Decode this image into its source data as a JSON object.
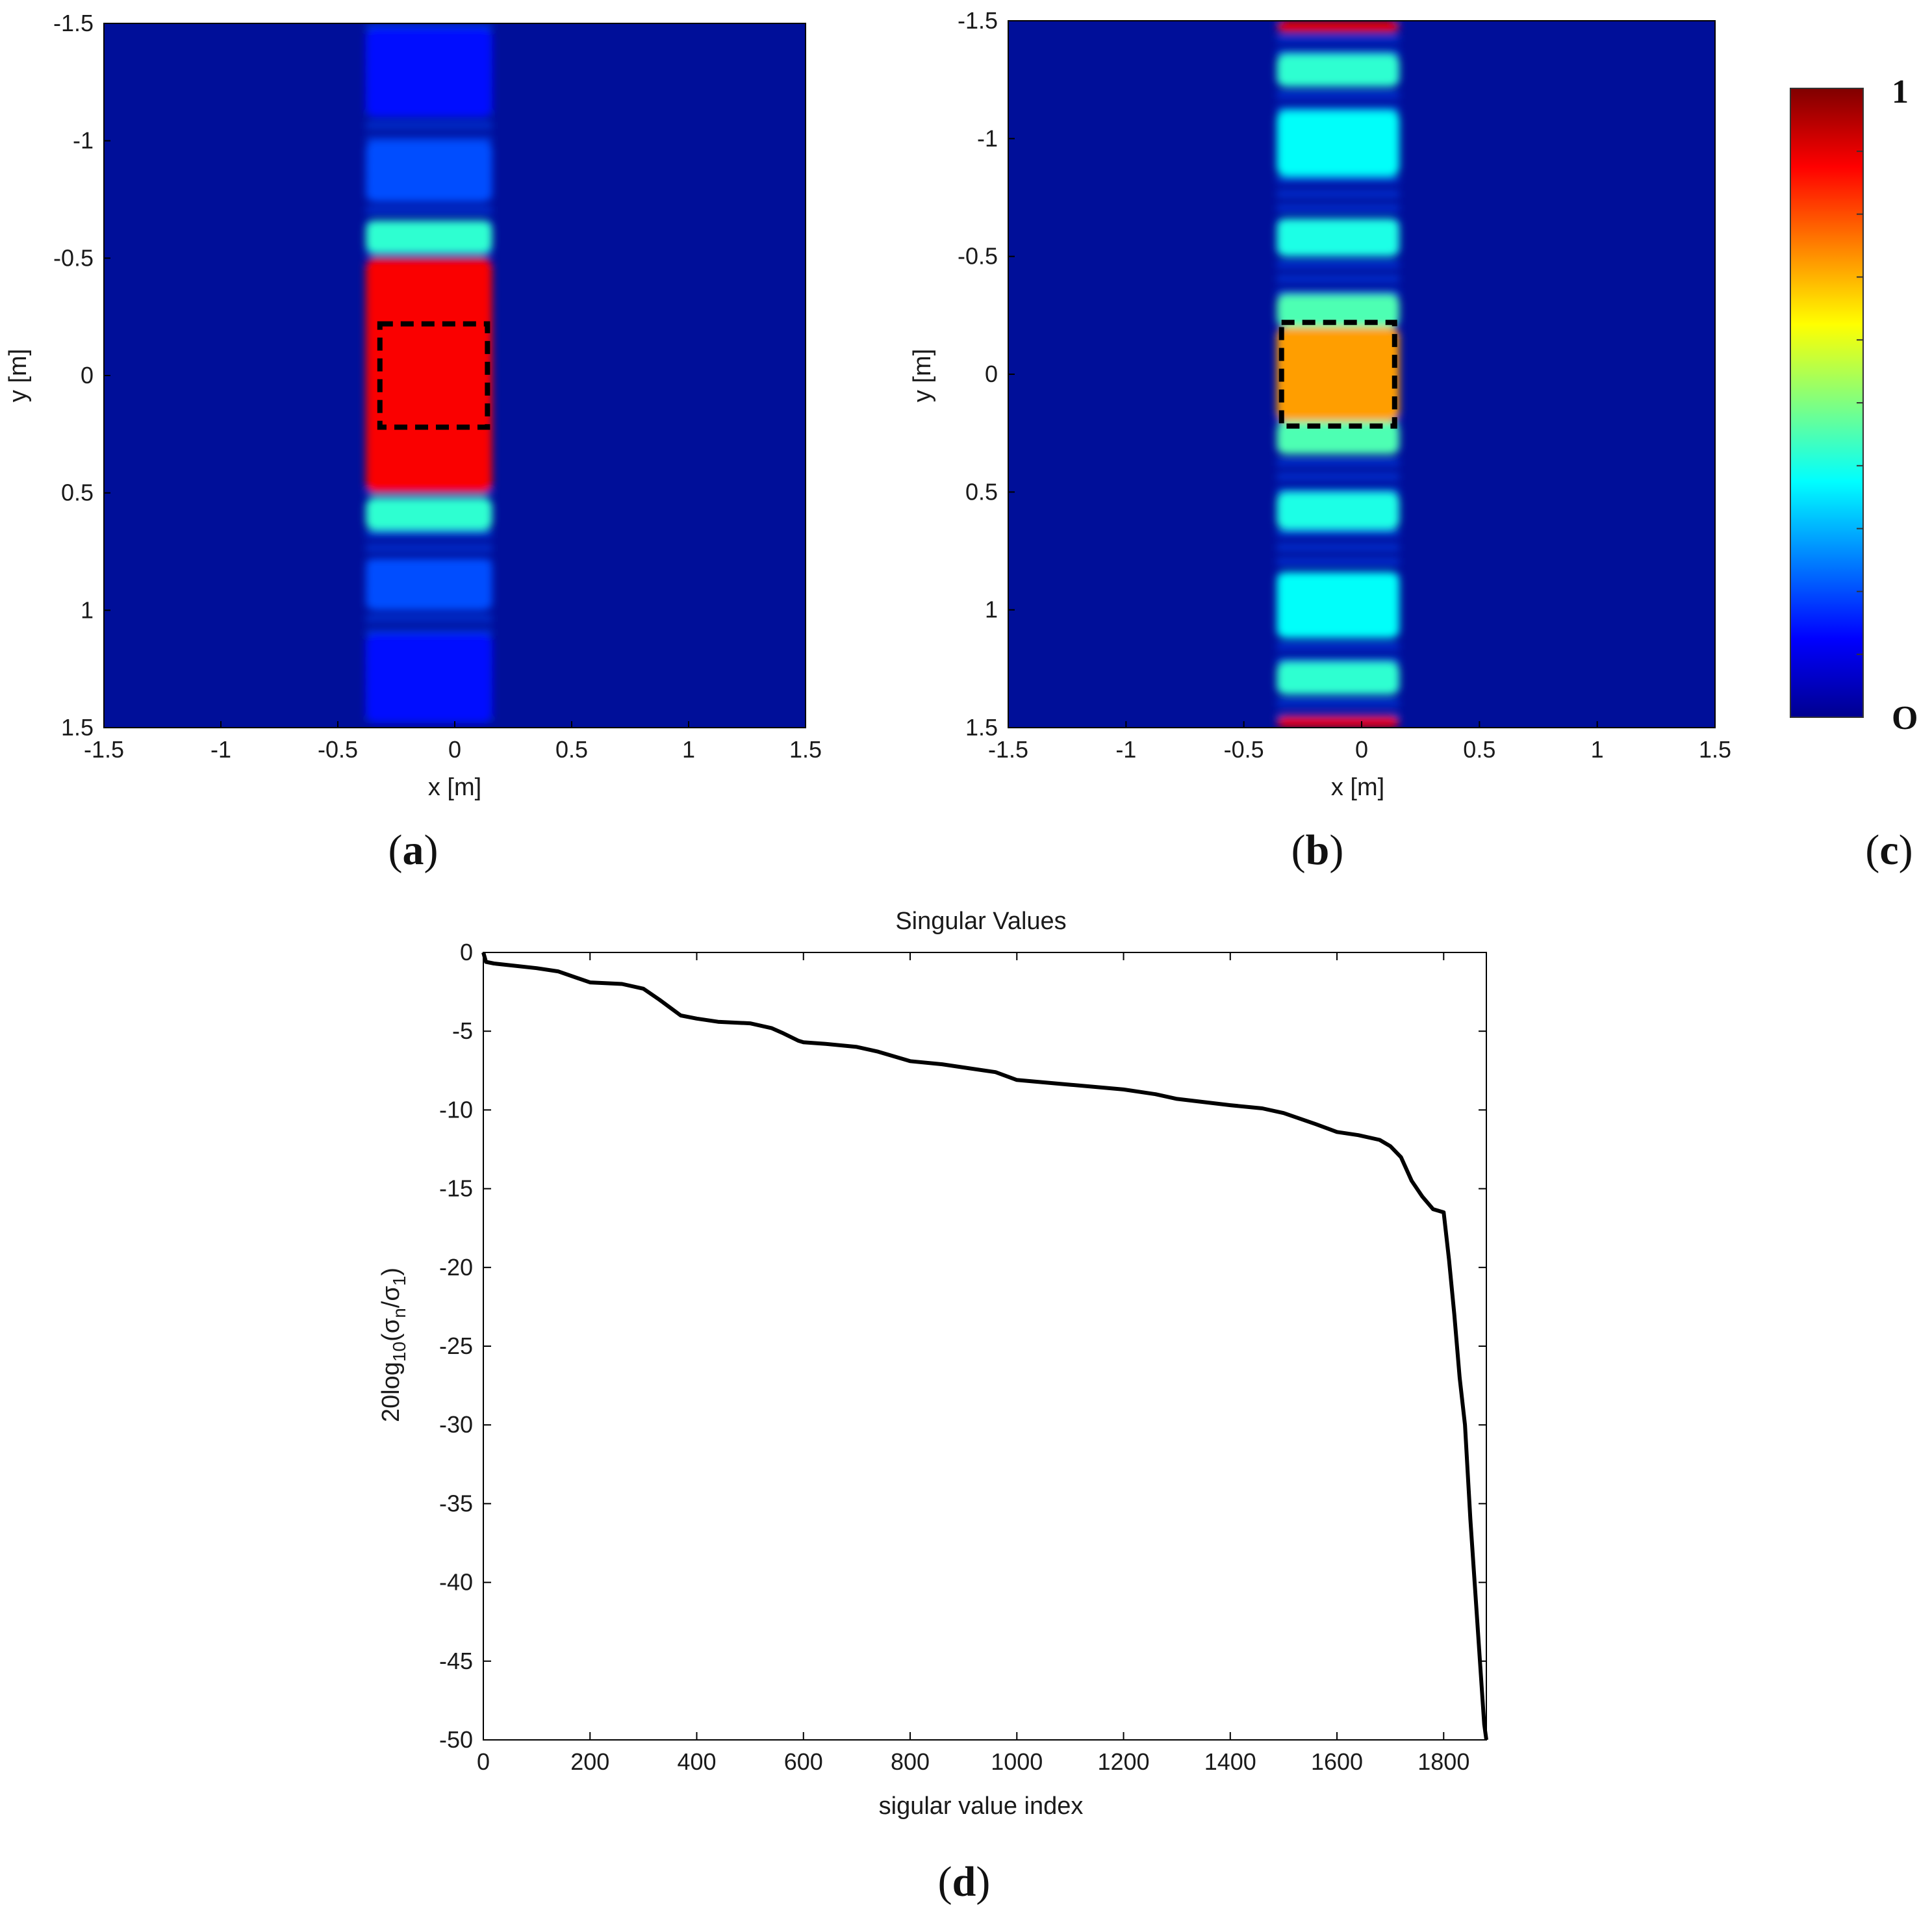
{
  "colors": {
    "line": "#000000",
    "axis": "#000000",
    "target_box": "#000000",
    "jet": [
      "#00008f",
      "#0000ff",
      "#0080ff",
      "#00ffff",
      "#80ff80",
      "#ffff00",
      "#ff8000",
      "#ff0000",
      "#800000"
    ]
  },
  "chart_data": [
    {
      "id": "a",
      "type": "heatmap",
      "panel_label": {
        "open": "(",
        "letter": "a",
        "close": ")"
      },
      "xlabel": "x [m]",
      "ylabel": "y [m]",
      "xlim": [
        -1.5,
        1.5
      ],
      "ylim": [
        -1.5,
        1.5
      ],
      "y_reversed": true,
      "xticks": [
        "-1.5",
        "-1",
        "-0.5",
        "0",
        "0.5",
        "1",
        "1.5"
      ],
      "yticks": [
        "-1.5",
        "-1",
        "-0.5",
        "0",
        "0.5",
        "1",
        "1.5"
      ],
      "target_box": {
        "x": [
          -0.32,
          0.14
        ],
        "y": [
          -0.22,
          0.22
        ]
      },
      "strip_x": [
        -0.38,
        0.16
      ],
      "bands": [
        {
          "y": [
            -0.5,
            0.5
          ],
          "v": 0.88
        },
        {
          "y": [
            -0.66,
            -0.52
          ],
          "v": 0.42
        },
        {
          "y": [
            0.52,
            0.66
          ],
          "v": 0.42
        },
        {
          "y": [
            -1.0,
            -0.74
          ],
          "v": 0.2
        },
        {
          "y": [
            0.78,
            1.0
          ],
          "v": 0.2
        },
        {
          "y": [
            -1.48,
            -1.1
          ],
          "v": 0.14
        },
        {
          "y": [
            1.1,
            1.48
          ],
          "v": 0.14
        }
      ]
    },
    {
      "id": "b",
      "type": "heatmap",
      "panel_label": {
        "open": "(",
        "letter": "b",
        "close": ")"
      },
      "xlabel": "x [m]",
      "ylabel": "y [m]",
      "xlim": [
        -1.5,
        1.5
      ],
      "ylim": [
        -1.5,
        1.5
      ],
      "y_reversed": true,
      "xticks": [
        "-1.5",
        "-1",
        "-0.5",
        "0",
        "0.5",
        "1",
        "1.5"
      ],
      "yticks": [
        "-1.5",
        "-1",
        "-0.5",
        "0",
        "0.5",
        "1",
        "1.5"
      ],
      "target_box": {
        "x": [
          -0.34,
          0.14
        ],
        "y": [
          -0.22,
          0.22
        ]
      },
      "strip_x": [
        -0.36,
        0.16
      ],
      "bands": [
        {
          "y": [
            -0.2,
            0.2
          ],
          "v": 0.72
        },
        {
          "y": [
            -0.34,
            -0.2
          ],
          "v": 0.45
        },
        {
          "y": [
            0.2,
            0.34
          ],
          "v": 0.45
        },
        {
          "y": [
            -0.66,
            -0.5
          ],
          "v": 0.4
        },
        {
          "y": [
            0.5,
            0.66
          ],
          "v": 0.4
        },
        {
          "y": [
            -1.12,
            -0.84
          ],
          "v": 0.38
        },
        {
          "y": [
            0.84,
            1.12
          ],
          "v": 0.38
        },
        {
          "y": [
            -1.36,
            -1.22
          ],
          "v": 0.42
        },
        {
          "y": [
            1.22,
            1.36
          ],
          "v": 0.42
        },
        {
          "y": [
            -1.5,
            -1.45
          ],
          "v": 0.9
        },
        {
          "y": [
            1.45,
            1.5
          ],
          "v": 0.9
        }
      ]
    },
    {
      "id": "c",
      "type": "colorbar",
      "panel_label": {
        "open": "(",
        "letter": "c",
        "close": ")"
      },
      "max_label": "1",
      "min_label": "O",
      "range": [
        0,
        1
      ]
    },
    {
      "id": "d",
      "type": "line",
      "panel_label": {
        "open": "(",
        "letter": "d",
        "close": ")"
      },
      "title": "Singular Values",
      "xlabel": "sigular value index",
      "ylabel": {
        "pre": "20log",
        "sub": "10",
        "mid": "(σ",
        "sub2": "n",
        "slash": "/σ",
        "sub3": "1",
        "post": ")"
      },
      "xlim": [
        0,
        1880
      ],
      "ylim": [
        -50,
        0
      ],
      "xticks": [
        "0",
        "200",
        "400",
        "600",
        "800",
        "1000",
        "1200",
        "1400",
        "1600",
        "1800"
      ],
      "yticks": [
        "0",
        "-5",
        "-10",
        "-15",
        "-20",
        "-25",
        "-30",
        "-35",
        "-40",
        "-45",
        "-50"
      ],
      "x": [
        0,
        5,
        20,
        100,
        140,
        200,
        260,
        300,
        330,
        350,
        370,
        400,
        440,
        500,
        540,
        560,
        590,
        600,
        640,
        700,
        740,
        800,
        860,
        900,
        960,
        1000,
        1100,
        1200,
        1260,
        1300,
        1400,
        1460,
        1500,
        1560,
        1600,
        1640,
        1680,
        1700,
        1720,
        1740,
        1760,
        1780,
        1800,
        1810,
        1820,
        1830,
        1840,
        1850,
        1860,
        1866,
        1872,
        1876,
        1880
      ],
      "y": [
        0,
        -0.6,
        -0.7,
        -1.0,
        -1.2,
        -1.9,
        -2.0,
        -2.3,
        -3.0,
        -3.5,
        -4.0,
        -4.2,
        -4.4,
        -4.5,
        -4.8,
        -5.1,
        -5.6,
        -5.7,
        -5.8,
        -6.0,
        -6.3,
        -6.9,
        -7.1,
        -7.3,
        -7.6,
        -8.1,
        -8.4,
        -8.7,
        -9.0,
        -9.3,
        -9.7,
        -9.9,
        -10.2,
        -10.9,
        -11.4,
        -11.6,
        -11.9,
        -12.3,
        -13.0,
        -14.5,
        -15.5,
        -16.3,
        -16.5,
        -19.5,
        -23.0,
        -27.0,
        -30.0,
        -36.0,
        -41.0,
        -44.0,
        -47.0,
        -49.0,
        -50.0
      ]
    }
  ]
}
